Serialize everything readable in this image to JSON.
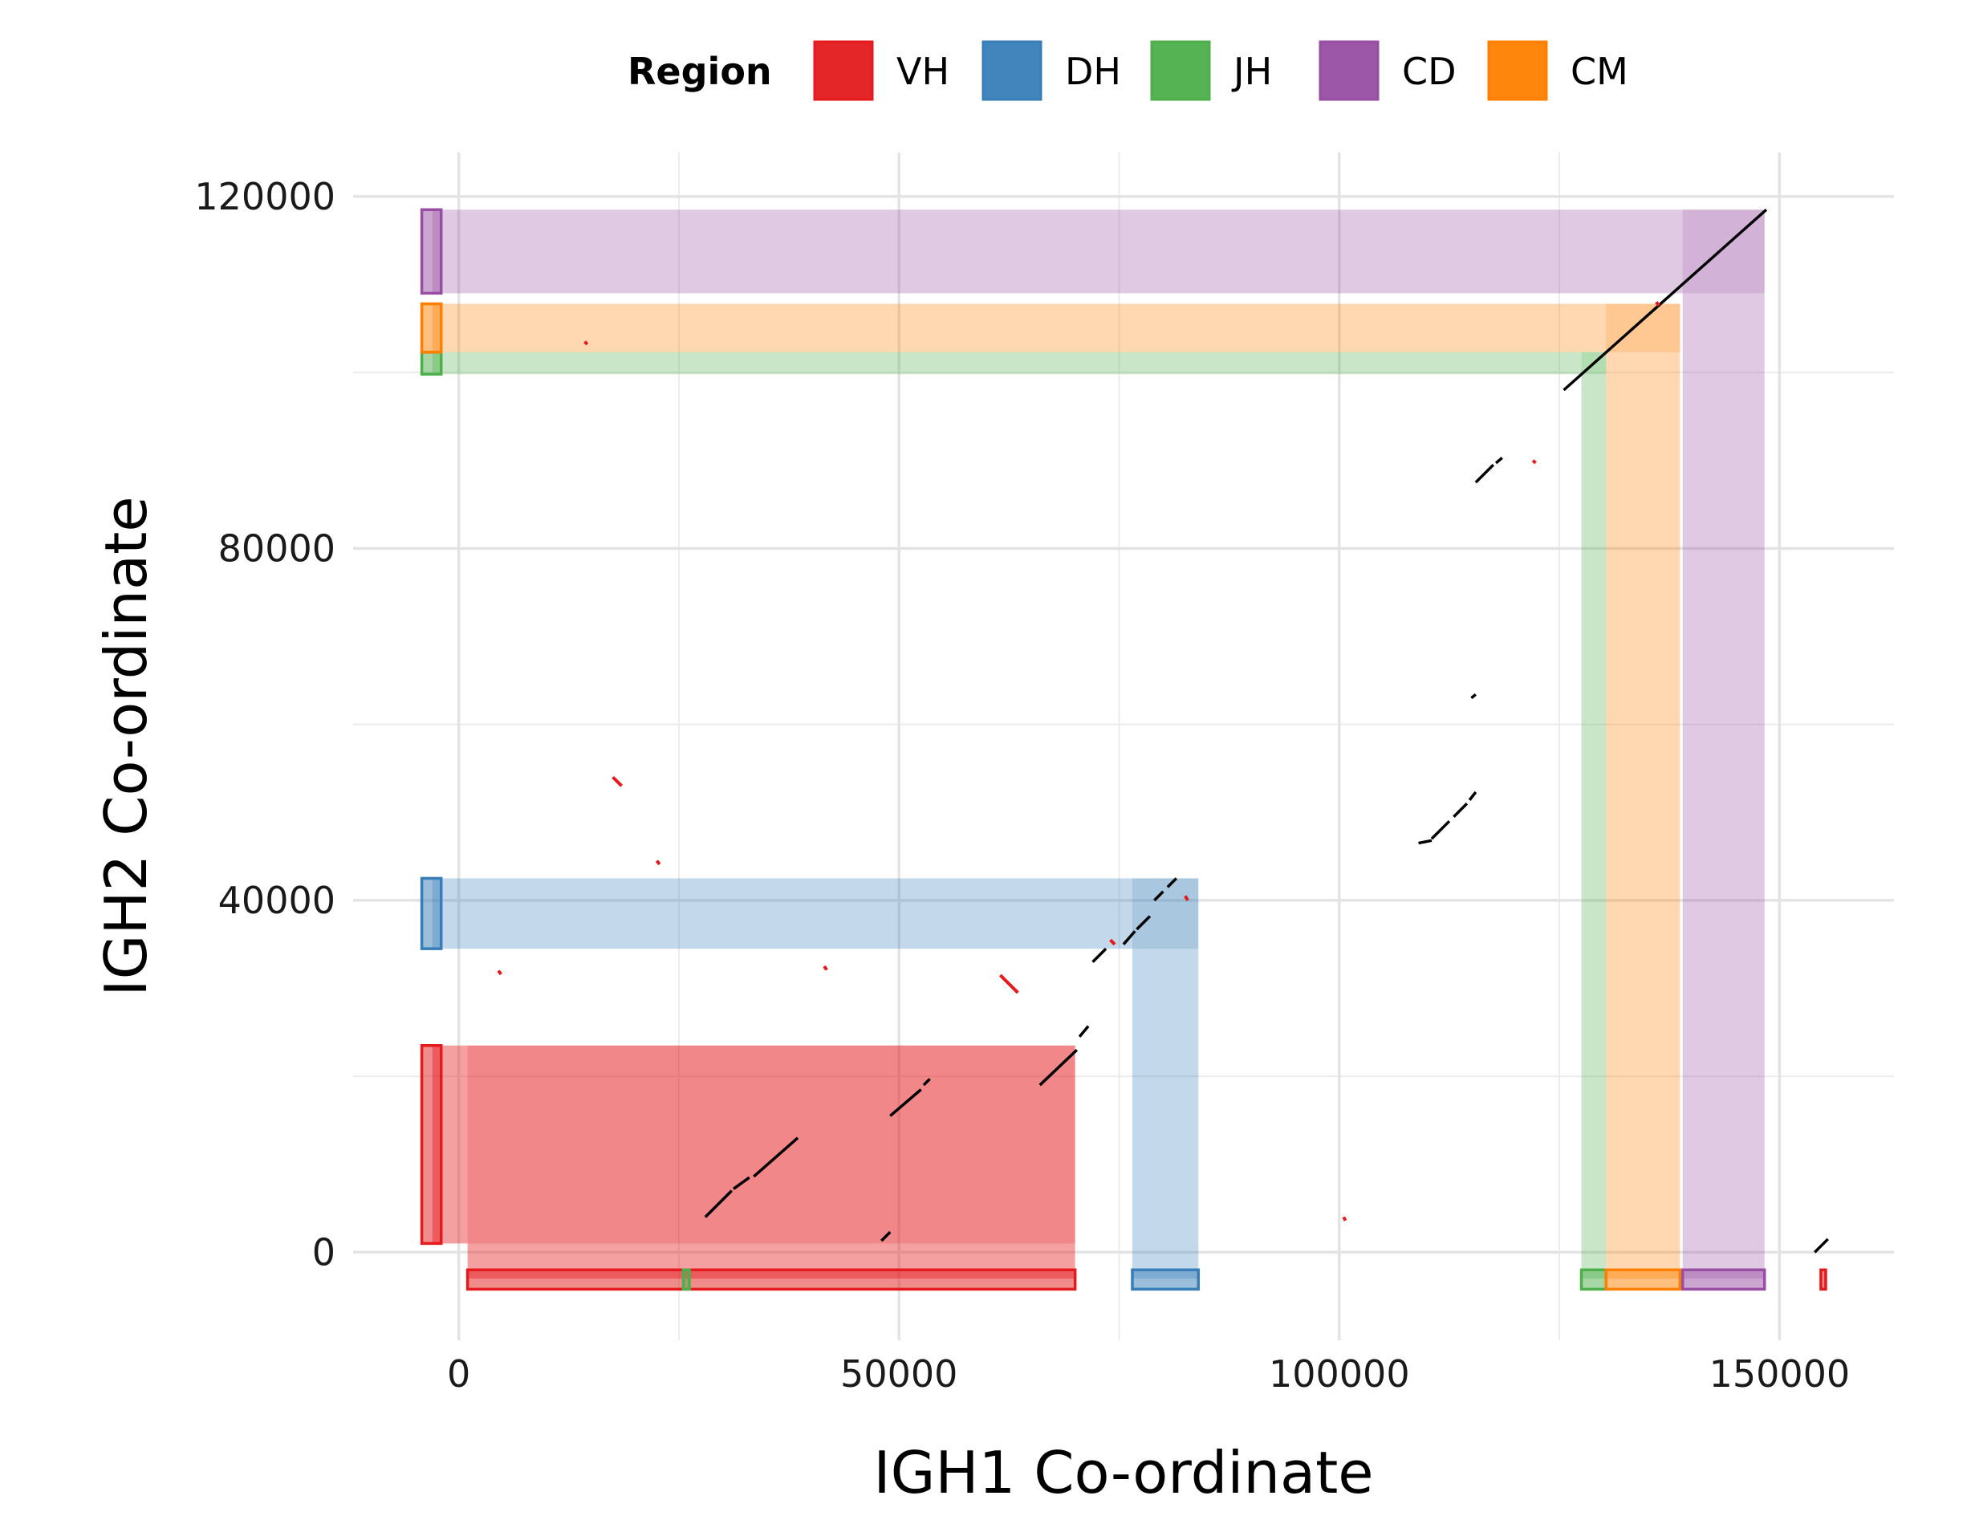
{
  "chart_data": {
    "type": "scatter",
    "title": "",
    "xlabel": "IGH1 Co-ordinate",
    "ylabel": "IGH2 Co-ordinate",
    "xlim": [
      -12000,
      163000
    ],
    "ylim": [
      -10000,
      125000
    ],
    "x_ticks": [
      0,
      50000,
      100000,
      150000
    ],
    "y_ticks": [
      0,
      40000,
      80000,
      120000
    ],
    "x_tick_labels": [
      "0",
      "50000",
      "100000",
      "150000"
    ],
    "y_tick_labels": [
      "0",
      "40000",
      "80000",
      "120000"
    ],
    "grid": true,
    "legend": {
      "title": "Region",
      "position": "top",
      "entries": [
        {
          "label": "VH",
          "color": "#E41A1C"
        },
        {
          "label": "DH",
          "color": "#377EB8"
        },
        {
          "label": "JH",
          "color": "#4DAF4A"
        },
        {
          "label": "CD",
          "color": "#984EA3"
        },
        {
          "label": "CM",
          "color": "#FF7F00"
        }
      ]
    },
    "regions_igh1": [
      {
        "region": "VH",
        "start": 1000,
        "end": 70000
      },
      {
        "region": "JH",
        "start": 25500,
        "end": 26200
      },
      {
        "region": "DH",
        "start": 76500,
        "end": 84000
      },
      {
        "region": "JH",
        "start": 127500,
        "end": 130300
      },
      {
        "region": "CM",
        "start": 130300,
        "end": 138700
      },
      {
        "region": "CD",
        "start": 139000,
        "end": 148300
      },
      {
        "region": "VH",
        "start": 154700,
        "end": 155000
      }
    ],
    "regions_igh2": [
      {
        "region": "VH",
        "start": 1000,
        "end": 23500
      },
      {
        "region": "DH",
        "start": 34500,
        "end": 42500
      },
      {
        "region": "JH",
        "start": 99800,
        "end": 102300
      },
      {
        "region": "CM",
        "start": 102300,
        "end": 107800
      },
      {
        "region": "CD",
        "start": 109000,
        "end": 118500
      }
    ],
    "alignments_forward": [
      [
        [
          28000,
          4000
        ],
        [
          31000,
          7000
        ]
      ],
      [
        [
          31200,
          7200
        ],
        [
          33000,
          8500
        ]
      ],
      [
        [
          33500,
          8600
        ],
        [
          38500,
          13000
        ]
      ],
      [
        [
          48000,
          1300
        ],
        [
          49000,
          2300
        ]
      ],
      [
        [
          49000,
          15500
        ],
        [
          52500,
          18500
        ]
      ],
      [
        [
          52800,
          19000
        ],
        [
          53500,
          19700
        ]
      ],
      [
        [
          66000,
          19000
        ],
        [
          70200,
          23000
        ]
      ],
      [
        [
          70500,
          24500
        ],
        [
          71500,
          25700
        ]
      ],
      [
        [
          72000,
          33000
        ],
        [
          73500,
          34500
        ]
      ],
      [
        [
          75500,
          35000
        ],
        [
          76800,
          36500
        ]
      ],
      [
        [
          77000,
          36700
        ],
        [
          78500,
          38200
        ]
      ],
      [
        [
          79000,
          40000
        ],
        [
          80000,
          41000
        ]
      ],
      [
        [
          80500,
          41500
        ],
        [
          81500,
          42500
        ]
      ],
      [
        [
          109000,
          46500
        ],
        [
          110500,
          46800
        ]
      ],
      [
        [
          110500,
          47000
        ],
        [
          112500,
          49000
        ]
      ],
      [
        [
          113000,
          49500
        ],
        [
          114500,
          51000
        ]
      ],
      [
        [
          114800,
          51400
        ],
        [
          115500,
          52300
        ]
      ],
      [
        [
          115000,
          63000
        ],
        [
          115500,
          63400
        ]
      ],
      [
        [
          115500,
          87500
        ],
        [
          117500,
          89500
        ]
      ],
      [
        [
          117800,
          89700
        ],
        [
          118500,
          90300
        ]
      ],
      [
        [
          125500,
          98000
        ],
        [
          148500,
          118500
        ]
      ],
      [
        [
          154000,
          0
        ],
        [
          155500,
          1500
        ]
      ]
    ],
    "alignments_reverse": [
      [
        [
          17500,
          54000
        ],
        [
          18500,
          53000
        ]
      ],
      [
        [
          22500,
          44500
        ],
        [
          22800,
          44100
        ]
      ],
      [
        [
          4500,
          32000
        ],
        [
          4800,
          31600
        ]
      ],
      [
        [
          41500,
          32500
        ],
        [
          41800,
          32100
        ]
      ],
      [
        [
          61500,
          31500
        ],
        [
          63500,
          29500
        ]
      ],
      [
        [
          74000,
          35500
        ],
        [
          74500,
          35000
        ]
      ],
      [
        [
          82500,
          40500
        ],
        [
          82800,
          40000
        ]
      ],
      [
        [
          122000,
          90000
        ],
        [
          122300,
          89700
        ]
      ],
      [
        [
          14300,
          103500
        ],
        [
          14600,
          103200
        ]
      ],
      [
        [
          100500,
          4000
        ],
        [
          100700,
          3600
        ]
      ],
      [
        [
          136000,
          108000
        ],
        [
          136300,
          107600
        ]
      ]
    ]
  }
}
